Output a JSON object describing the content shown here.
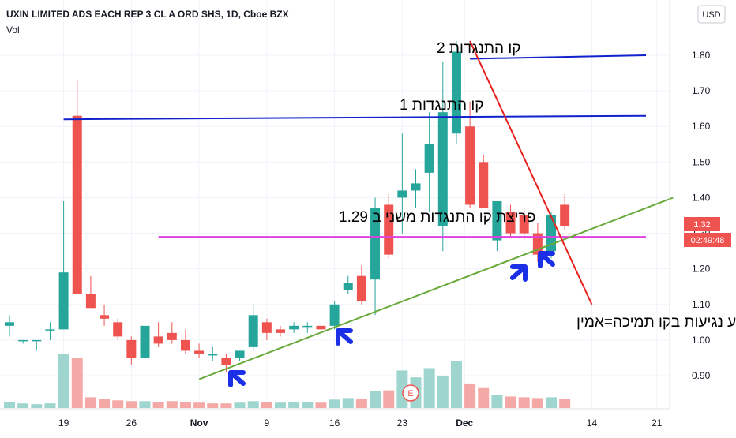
{
  "header": {
    "title": "UXIN LIMITED ADS EACH REP 3 CL A ORD SHS, 1D, Cboe BZX",
    "volume_label": "Vol"
  },
  "currency_label": "USD",
  "last_price": "1.32",
  "countdown": "02:49:48",
  "earnings_marker": "E",
  "colors": {
    "up": "#26a69a",
    "down": "#ef5350",
    "vol_up": "#9fd5cf",
    "vol_down": "#f5a9a7",
    "resistance": "#1122cc",
    "breakout_line": "#e040e0",
    "support": "#6aaa3a",
    "trend_down": "#e8201c",
    "arrow": "#1a2fe6"
  },
  "annotations": {
    "resistance2": "קו התנגדות 2",
    "resistance1": "קו התנגדות 1",
    "breakout": "פריצת קו התנגדות משני ב 1.29",
    "support": "ארבע נגיעות בקו תמיכה=אמין"
  },
  "chart_data": {
    "type": "candlestick",
    "title": "UXIN LIMITED ADS EACH REP 3 CL A ORD SHS, 1D, Cboe BZX",
    "y_ticks": [
      "0.90",
      "1.00",
      "1.10",
      "1.20",
      "1.30",
      "1.40",
      "1.50",
      "1.60",
      "1.70",
      "1.80"
    ],
    "x_ticks": [
      "19",
      "26",
      "Nov",
      "9",
      "16",
      "23",
      "Dec",
      "14",
      "21"
    ],
    "ylim": [
      0.82,
      1.87
    ],
    "candles": [
      {
        "o": 1.04,
        "h": 1.07,
        "l": 1.01,
        "c": 1.05,
        "v": "low"
      },
      {
        "o": 1.0,
        "h": 1.0,
        "l": 0.99,
        "c": 1.0,
        "v": "low"
      },
      {
        "o": 1.0,
        "h": 1.0,
        "l": 0.97,
        "c": 1.0,
        "v": "low"
      },
      {
        "o": 1.03,
        "h": 1.05,
        "l": 1.0,
        "c": 1.03,
        "v": "low"
      },
      {
        "o": 1.03,
        "h": 1.39,
        "l": 1.03,
        "c": 1.19,
        "v": "mid"
      },
      {
        "o": 1.63,
        "h": 1.73,
        "l": 1.13,
        "c": 1.13,
        "v": "high"
      },
      {
        "o": 1.13,
        "h": 1.18,
        "l": 1.09,
        "c": 1.09,
        "v": "low"
      },
      {
        "o": 1.07,
        "h": 1.1,
        "l": 1.04,
        "c": 1.06,
        "v": "low"
      },
      {
        "o": 1.05,
        "h": 1.06,
        "l": 1.0,
        "c": 1.01,
        "v": "low"
      },
      {
        "o": 1.0,
        "h": 1.01,
        "l": 0.93,
        "c": 0.95,
        "v": "low"
      },
      {
        "o": 0.95,
        "h": 1.05,
        "l": 0.92,
        "c": 1.04,
        "v": "low"
      },
      {
        "o": 1.01,
        "h": 1.05,
        "l": 0.98,
        "c": 0.99,
        "v": "low"
      },
      {
        "o": 1.02,
        "h": 1.05,
        "l": 0.99,
        "c": 1.0,
        "v": "low"
      },
      {
        "o": 1.0,
        "h": 1.03,
        "l": 0.96,
        "c": 0.97,
        "v": "low"
      },
      {
        "o": 0.97,
        "h": 0.99,
        "l": 0.95,
        "c": 0.96,
        "v": "low"
      },
      {
        "o": 0.96,
        "h": 0.98,
        "l": 0.94,
        "c": 0.96,
        "v": "low"
      },
      {
        "o": 0.95,
        "h": 0.96,
        "l": 0.91,
        "c": 0.93,
        "v": "low"
      },
      {
        "o": 0.95,
        "h": 0.97,
        "l": 0.94,
        "c": 0.97,
        "v": "low"
      },
      {
        "o": 0.98,
        "h": 1.1,
        "l": 0.97,
        "c": 1.07,
        "v": "low"
      },
      {
        "o": 1.05,
        "h": 1.06,
        "l": 1.0,
        "c": 1.02,
        "v": "low"
      },
      {
        "o": 1.03,
        "h": 1.04,
        "l": 1.01,
        "c": 1.02,
        "v": "low"
      },
      {
        "o": 1.03,
        "h": 1.05,
        "l": 1.02,
        "c": 1.04,
        "v": "low"
      },
      {
        "o": 1.04,
        "h": 1.05,
        "l": 1.02,
        "c": 1.04,
        "v": "low"
      },
      {
        "o": 1.04,
        "h": 1.05,
        "l": 1.02,
        "c": 1.03,
        "v": "low"
      },
      {
        "o": 1.04,
        "h": 1.11,
        "l": 1.03,
        "c": 1.1,
        "v": "low"
      },
      {
        "o": 1.14,
        "h": 1.18,
        "l": 1.13,
        "c": 1.16,
        "v": "low"
      },
      {
        "o": 1.18,
        "h": 1.21,
        "l": 1.1,
        "c": 1.11,
        "v": "low"
      },
      {
        "o": 1.17,
        "h": 1.4,
        "l": 1.07,
        "c": 1.37,
        "v": "mid"
      },
      {
        "o": 1.38,
        "h": 1.41,
        "l": 1.23,
        "c": 1.24,
        "v": "mid"
      },
      {
        "o": 1.4,
        "h": 1.58,
        "l": 1.3,
        "c": 1.42,
        "v": "mid"
      },
      {
        "o": 1.42,
        "h": 1.48,
        "l": 1.37,
        "c": 1.44,
        "v": "mid"
      },
      {
        "o": 1.47,
        "h": 1.64,
        "l": 1.36,
        "c": 1.55,
        "v": "mid"
      },
      {
        "o": 1.32,
        "h": 1.78,
        "l": 1.25,
        "c": 1.64,
        "v": "high"
      },
      {
        "o": 1.58,
        "h": 1.84,
        "l": 1.55,
        "c": 1.81,
        "v": "mid"
      },
      {
        "o": 1.6,
        "h": 1.67,
        "l": 1.37,
        "c": 1.38,
        "v": "low"
      },
      {
        "o": 1.5,
        "h": 1.52,
        "l": 1.37,
        "c": 1.37,
        "v": "low"
      },
      {
        "o": 1.28,
        "h": 1.39,
        "l": 1.25,
        "c": 1.39,
        "v": "low"
      },
      {
        "o": 1.36,
        "h": 1.38,
        "l": 1.29,
        "c": 1.3,
        "v": "low"
      },
      {
        "o": 1.35,
        "h": 1.37,
        "l": 1.28,
        "c": 1.3,
        "v": "low"
      },
      {
        "o": 1.3,
        "h": 1.33,
        "l": 1.22,
        "c": 1.24,
        "v": "low"
      },
      {
        "o": 1.25,
        "h": 1.36,
        "l": 1.23,
        "c": 1.35,
        "v": "low"
      },
      {
        "o": 1.38,
        "h": 1.41,
        "l": 1.31,
        "c": 1.32,
        "v": "low"
      }
    ],
    "volumes": [
      8,
      6,
      5,
      6,
      70,
      65,
      14,
      12,
      10,
      9,
      9,
      8,
      9,
      8,
      7,
      6,
      6,
      7,
      9,
      8,
      7,
      8,
      8,
      7,
      11,
      13,
      12,
      22,
      23,
      49,
      40,
      52,
      42,
      61,
      32,
      26,
      17,
      15,
      14,
      13,
      14,
      12
    ],
    "vol_colors_up": [
      true,
      true,
      true,
      true,
      true,
      false,
      false,
      false,
      false,
      false,
      true,
      false,
      false,
      false,
      false,
      false,
      false,
      true,
      true,
      false,
      true,
      true,
      true,
      false,
      true,
      true,
      false,
      true,
      false,
      true,
      true,
      true,
      true,
      true,
      false,
      false,
      true,
      false,
      false,
      false,
      true,
      false
    ],
    "lines": [
      {
        "name": "resistance2",
        "x1": 34,
        "y1": 1.79,
        "x2": 47,
        "y2": 1.8
      },
      {
        "name": "resistance1",
        "x1": 4,
        "y1": 1.62,
        "x2": 47,
        "y2": 1.63
      },
      {
        "name": "breakout",
        "x1": 11,
        "y1": 1.29,
        "x2": 47,
        "y2": 1.29
      },
      {
        "name": "support",
        "x1": 14,
        "y1": 0.89,
        "x2": 49,
        "y2": 1.4
      },
      {
        "name": "trend_down",
        "x1": 34,
        "y1": 1.84,
        "x2": 43,
        "y2": 1.1
      }
    ]
  }
}
